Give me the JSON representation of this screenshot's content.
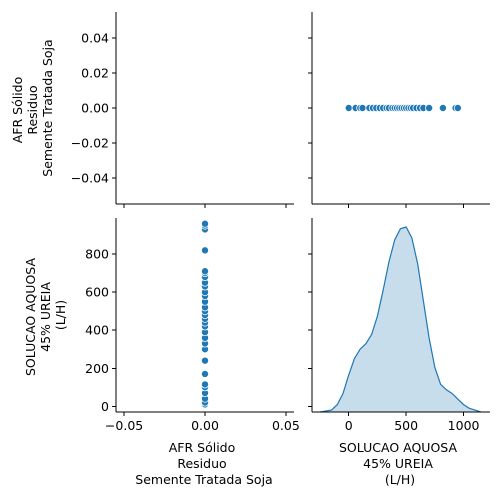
{
  "chart_data": {
    "type": "pairplot",
    "variables": [
      {
        "key": "afr",
        "label_lines": [
          "AFR Sólido",
          "Residuo",
          "Semente Tratada Soja"
        ]
      },
      {
        "key": "ureia",
        "label_lines": [
          "SOLUCAO AQUOSA",
          "45% UREIA",
          "(L/H)"
        ]
      }
    ],
    "colors": {
      "points": "#1f77b4",
      "kde_fill": "#1f77b4",
      "kde_line": "#1f77b4"
    },
    "panels": {
      "afr_vs_afr": {
        "type": "empty",
        "ylim": [
          -0.055,
          0.055
        ],
        "y_ticks": [
          -0.04,
          -0.02,
          0.0,
          0.02,
          0.04
        ],
        "y_tick_labels": [
          "−0.04",
          "−0.02",
          "0.00",
          "0.02",
          "0.04"
        ]
      },
      "afr_vs_ureia": {
        "type": "scatter",
        "x": [
          0,
          60,
          100,
          120,
          180,
          210,
          240,
          270,
          300,
          330,
          350,
          380,
          400,
          420,
          440,
          460,
          480,
          500,
          520,
          540,
          560,
          590,
          620,
          650,
          700,
          820,
          930,
          950
        ],
        "y": [
          0,
          0,
          0,
          0,
          0,
          0,
          0,
          0,
          0,
          0,
          0,
          0,
          0,
          0,
          0,
          0,
          0,
          0,
          0,
          0,
          0,
          0,
          0,
          0,
          0,
          0,
          0,
          0
        ]
      },
      "ureia_vs_afr": {
        "type": "scatter",
        "x": [
          0,
          0,
          0,
          0,
          0,
          0,
          0,
          0,
          0,
          0,
          0,
          0,
          0,
          0,
          0,
          0,
          0,
          0,
          0,
          0,
          0,
          0,
          0,
          0,
          0,
          0,
          0,
          0,
          0,
          0
        ],
        "y": [
          10,
          20,
          40,
          70,
          100,
          115,
          170,
          240,
          300,
          330,
          360,
          390,
          420,
          440,
          460,
          480,
          500,
          520,
          550,
          580,
          600,
          630,
          650,
          680,
          700,
          710,
          820,
          930,
          950,
          960
        ],
        "xlim": [
          -0.055,
          0.055
        ],
        "x_ticks": [
          -0.05,
          0.0,
          0.05
        ],
        "x_tick_labels": [
          "−0.05",
          "0.00",
          "0.05"
        ],
        "ylim": [
          -30,
          990
        ],
        "y_ticks": [
          0,
          200,
          400,
          600,
          800
        ],
        "y_tick_labels": [
          "0",
          "200",
          "400",
          "600",
          "800"
        ]
      },
      "ureia_vs_ureia": {
        "type": "kde",
        "x": [
          -250,
          -150,
          -100,
          -50,
          0,
          50,
          100,
          150,
          200,
          250,
          300,
          350,
          400,
          450,
          500,
          550,
          600,
          650,
          700,
          750,
          800,
          850,
          900,
          950,
          1000,
          1050,
          1100,
          1150
        ],
        "density": [
          0.0,
          0.01,
          0.04,
          0.1,
          0.2,
          0.29,
          0.34,
          0.37,
          0.42,
          0.52,
          0.66,
          0.81,
          0.93,
          0.99,
          1.0,
          0.94,
          0.8,
          0.6,
          0.4,
          0.24,
          0.15,
          0.12,
          0.1,
          0.07,
          0.04,
          0.02,
          0.01,
          0.0
        ],
        "xlim": [
          -320,
          1230
        ],
        "x_ticks": [
          0,
          500,
          1000
        ],
        "x_tick_labels": [
          "0",
          "500",
          "1000"
        ]
      }
    }
  }
}
